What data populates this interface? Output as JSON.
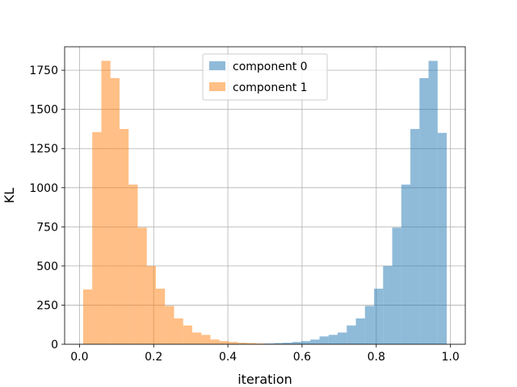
{
  "chart_data": {
    "type": "bar",
    "xlabel": "iteration",
    "ylabel": "KL",
    "xlim": [
      -0.04,
      1.04
    ],
    "ylim": [
      0,
      1900
    ],
    "xticks": [
      "0.0",
      "0.2",
      "0.4",
      "0.6",
      "0.8",
      "1.0"
    ],
    "yticks": [
      "0",
      "250",
      "500",
      "750",
      "1000",
      "1250",
      "1500",
      "1750"
    ],
    "grid": true,
    "legend_position": "top-center",
    "bin_edges": [
      0.01,
      0.0345,
      0.059,
      0.0835,
      0.108,
      0.1325,
      0.157,
      0.1815,
      0.206,
      0.2305,
      0.255,
      0.2795,
      0.304,
      0.3285,
      0.353,
      0.3775,
      0.402,
      0.4265,
      0.451,
      0.4755,
      0.5,
      0.5245,
      0.549,
      0.5735,
      0.598,
      0.6225,
      0.647,
      0.6715,
      0.696,
      0.7205,
      0.745,
      0.7695,
      0.794,
      0.8185,
      0.843,
      0.8675,
      0.892,
      0.9165,
      0.941,
      0.9655,
      0.99
    ],
    "series": [
      {
        "name": "component 0",
        "color": "#1f77b4",
        "alpha": 0.5,
        "values": [
          0,
          0,
          0,
          0,
          0,
          0,
          0,
          0,
          0,
          0,
          0,
          0,
          0,
          0,
          0,
          0,
          0,
          0,
          0,
          0,
          5,
          8,
          10,
          15,
          20,
          30,
          50,
          60,
          75,
          120,
          165,
          245,
          355,
          500,
          745,
          1020,
          1375,
          1700,
          1810,
          1350
        ]
      },
      {
        "name": "component 1",
        "color": "#ff7f0e",
        "alpha": 0.5,
        "values": [
          350,
          1355,
          1810,
          1700,
          1375,
          1020,
          745,
          500,
          355,
          245,
          165,
          120,
          75,
          60,
          30,
          20,
          15,
          10,
          8,
          5,
          0,
          0,
          0,
          0,
          0,
          0,
          0,
          0,
          0,
          0,
          0,
          0,
          0,
          0,
          0,
          0,
          0,
          0,
          0,
          0
        ]
      }
    ]
  }
}
